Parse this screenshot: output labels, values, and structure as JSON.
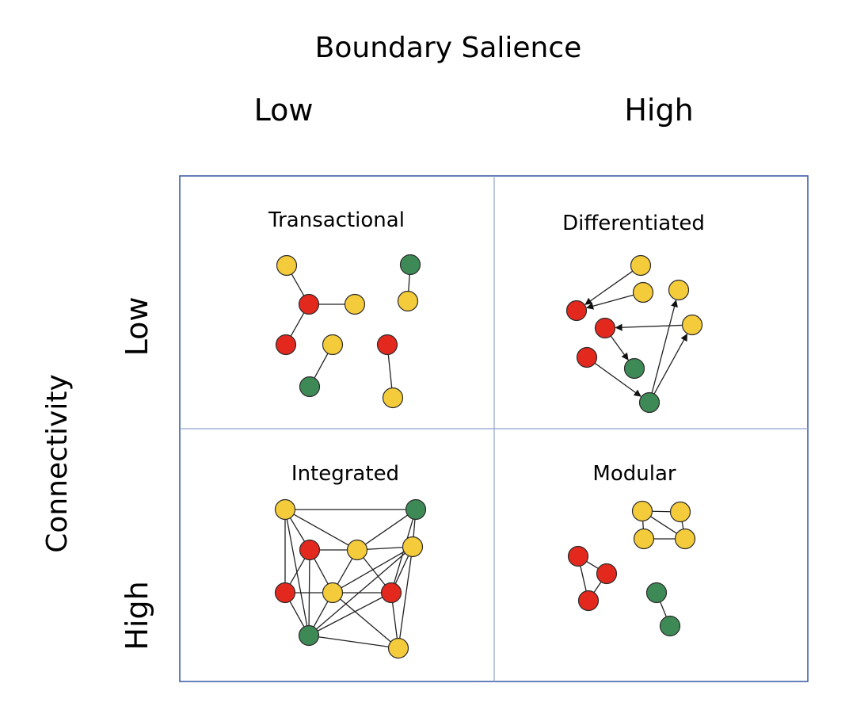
{
  "x_axis": {
    "title": "Boundary Salience",
    "levels": [
      "Low",
      "High"
    ]
  },
  "y_axis": {
    "title": "Connectivity",
    "levels": [
      "Low",
      "High"
    ]
  },
  "colors": {
    "node_yellow": "#f4cb3a",
    "node_red": "#e3281e",
    "node_green": "#3e8a56",
    "grid_line": "#3f5fa8"
  },
  "quadrants": [
    {
      "title": "Transactional",
      "boundary_salience": "Low",
      "connectivity": "Low",
      "directed": false,
      "nodes": [
        {
          "id": "a",
          "color": "yellow"
        },
        {
          "id": "b",
          "color": "red"
        },
        {
          "id": "c",
          "color": "yellow"
        },
        {
          "id": "d",
          "color": "red"
        },
        {
          "id": "e",
          "color": "green"
        },
        {
          "id": "f",
          "color": "yellow"
        },
        {
          "id": "g",
          "color": "yellow"
        },
        {
          "id": "h",
          "color": "green"
        },
        {
          "id": "i",
          "color": "red"
        },
        {
          "id": "j",
          "color": "yellow"
        }
      ],
      "edges": [
        [
          "a",
          "b"
        ],
        [
          "b",
          "c"
        ],
        [
          "b",
          "d"
        ],
        [
          "e",
          "f"
        ],
        [
          "g",
          "h"
        ],
        [
          "i",
          "j"
        ]
      ]
    },
    {
      "title": "Differentiated",
      "boundary_salience": "High",
      "connectivity": "Low",
      "directed": true,
      "nodes": [
        {
          "id": "a",
          "color": "yellow"
        },
        {
          "id": "b",
          "color": "yellow"
        },
        {
          "id": "c",
          "color": "yellow"
        },
        {
          "id": "d",
          "color": "red"
        },
        {
          "id": "e",
          "color": "red"
        },
        {
          "id": "f",
          "color": "yellow"
        },
        {
          "id": "g",
          "color": "red"
        },
        {
          "id": "h",
          "color": "green"
        },
        {
          "id": "i",
          "color": "green"
        }
      ],
      "edges": [
        [
          "a",
          "d"
        ],
        [
          "b",
          "d"
        ],
        [
          "f",
          "e"
        ],
        [
          "e",
          "h"
        ],
        [
          "g",
          "i"
        ],
        [
          "i",
          "c"
        ],
        [
          "i",
          "f"
        ]
      ]
    },
    {
      "title": "Integrated",
      "boundary_salience": "Low",
      "connectivity": "High",
      "directed": false,
      "nodes": [
        {
          "id": "a",
          "color": "yellow"
        },
        {
          "id": "b",
          "color": "green"
        },
        {
          "id": "c",
          "color": "red"
        },
        {
          "id": "d",
          "color": "yellow"
        },
        {
          "id": "e",
          "color": "yellow"
        },
        {
          "id": "f",
          "color": "red"
        },
        {
          "id": "g",
          "color": "yellow"
        },
        {
          "id": "h",
          "color": "red"
        },
        {
          "id": "i",
          "color": "green"
        },
        {
          "id": "j",
          "color": "yellow"
        }
      ],
      "edges": [
        [
          "a",
          "b"
        ],
        [
          "a",
          "c"
        ],
        [
          "a",
          "f"
        ],
        [
          "a",
          "i"
        ],
        [
          "a",
          "d"
        ],
        [
          "b",
          "d"
        ],
        [
          "b",
          "e"
        ],
        [
          "b",
          "h"
        ],
        [
          "c",
          "d"
        ],
        [
          "c",
          "f"
        ],
        [
          "c",
          "g"
        ],
        [
          "c",
          "i"
        ],
        [
          "d",
          "e"
        ],
        [
          "d",
          "g"
        ],
        [
          "d",
          "h"
        ],
        [
          "e",
          "g"
        ],
        [
          "e",
          "h"
        ],
        [
          "e",
          "j"
        ],
        [
          "e",
          "i"
        ],
        [
          "f",
          "g"
        ],
        [
          "g",
          "h"
        ],
        [
          "g",
          "i"
        ],
        [
          "g",
          "j"
        ],
        [
          "i",
          "j"
        ],
        [
          "h",
          "j"
        ],
        [
          "i",
          "h"
        ],
        [
          "f",
          "i"
        ]
      ]
    },
    {
      "title": "Modular",
      "boundary_salience": "High",
      "connectivity": "High",
      "directed": false,
      "nodes": [
        {
          "id": "a",
          "color": "yellow"
        },
        {
          "id": "b",
          "color": "yellow"
        },
        {
          "id": "c",
          "color": "yellow"
        },
        {
          "id": "d",
          "color": "yellow"
        },
        {
          "id": "e",
          "color": "red"
        },
        {
          "id": "f",
          "color": "red"
        },
        {
          "id": "g",
          "color": "red"
        },
        {
          "id": "h",
          "color": "green"
        },
        {
          "id": "i",
          "color": "green"
        }
      ],
      "edges": [
        [
          "a",
          "b"
        ],
        [
          "a",
          "c"
        ],
        [
          "b",
          "d"
        ],
        [
          "c",
          "d"
        ],
        [
          "a",
          "d"
        ],
        [
          "e",
          "f"
        ],
        [
          "f",
          "g"
        ],
        [
          "e",
          "g"
        ],
        [
          "h",
          "i"
        ]
      ]
    }
  ]
}
